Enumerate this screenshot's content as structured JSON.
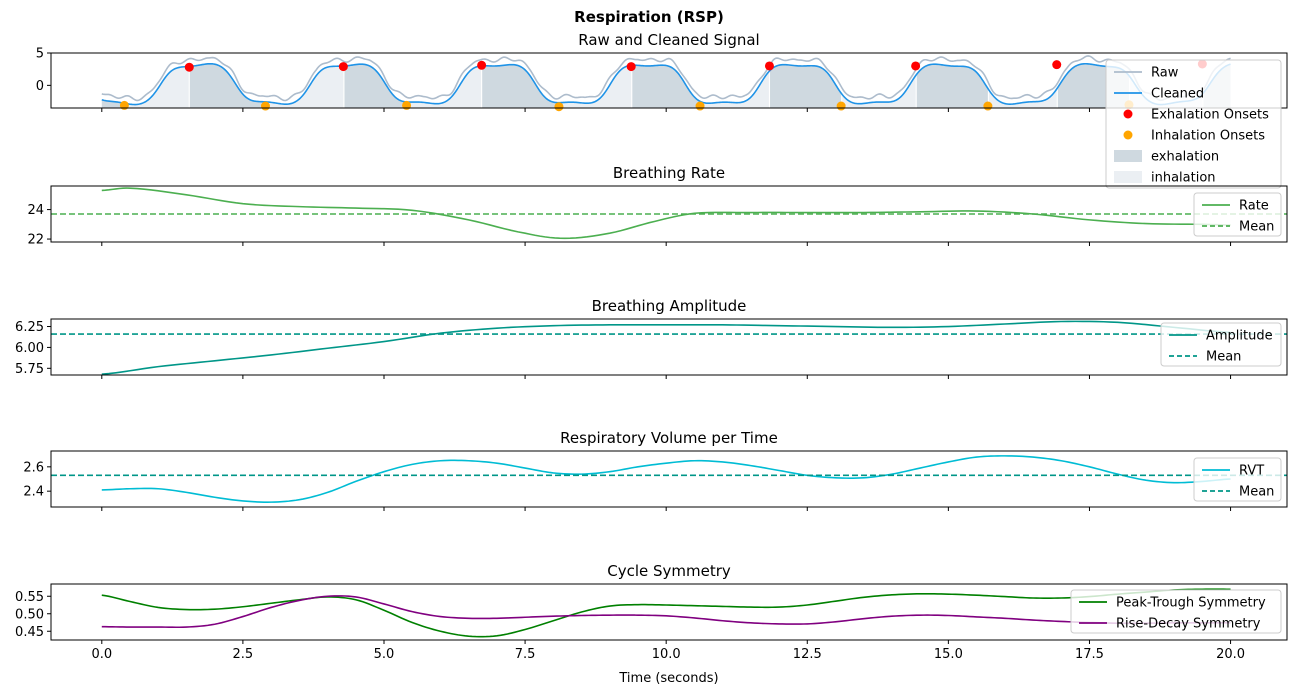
{
  "figure": {
    "suptitle": "Respiration (RSP)",
    "xlabel": "Time (seconds)"
  },
  "chart_data": [
    {
      "type": "line",
      "title": "Raw and Cleaned Signal",
      "xlim": [
        -0.9,
        21
      ],
      "ylim": [
        -3.5,
        5
      ],
      "x_ticks": [
        0,
        2.5,
        5,
        7.5,
        10,
        12.5,
        15,
        17.5,
        20
      ],
      "x_tick_labels": [
        "0.0",
        "2.5",
        "5.0",
        "7.5",
        "10.0",
        "12.5",
        "15.0",
        "17.5",
        "20.0"
      ],
      "y_ticks": [
        0,
        5
      ],
      "y_tick_labels": [
        "0",
        "5"
      ],
      "cycle_period_s": 2.65,
      "exhalation_onsets_x": [
        1.55,
        4.28,
        6.73,
        9.38,
        11.83,
        14.42,
        16.92,
        19.5
      ],
      "exhalation_onsets_y": [
        2.8,
        2.9,
        3.1,
        2.9,
        3.0,
        3.0,
        3.2,
        3.3
      ],
      "inhalation_onsets_x": [
        0.4,
        2.9,
        5.4,
        8.1,
        10.6,
        13.1,
        15.7,
        18.2
      ],
      "inhalation_onsets_y": [
        -3.1,
        -3.2,
        -3.1,
        -3.3,
        -3.2,
        -3.2,
        -3.2,
        -3.0
      ],
      "series": [
        {
          "name": "Raw",
          "color": "#adbccc"
        },
        {
          "name": "Cleaned",
          "color": "#1f93e7"
        },
        {
          "name": "Exhalation Onsets",
          "color": "#ff0000",
          "marker": "circle"
        },
        {
          "name": "Inhalation Onsets",
          "color": "#ffa500",
          "marker": "circle"
        },
        {
          "name": "exhalation",
          "color": "#cfd9e0",
          "kind": "area"
        },
        {
          "name": "inhalation",
          "color": "#ebeff3",
          "kind": "area"
        }
      ],
      "legend": "upper-right"
    },
    {
      "type": "line",
      "title": "Breathing Rate",
      "xlim": [
        -0.9,
        21
      ],
      "ylim": [
        21.8,
        25.6
      ],
      "y_ticks": [
        22,
        24
      ],
      "y_tick_labels": [
        "22",
        "24"
      ],
      "x": [
        0,
        0.5,
        1.5,
        2.5,
        3.5,
        4.5,
        5.5,
        6.5,
        7.5,
        8.2,
        9,
        9.8,
        10.5,
        11.5,
        12.5,
        13.5,
        14.5,
        15.5,
        16.5,
        17.5,
        18.5,
        19.5,
        20
      ],
      "series": [
        {
          "name": "Rate",
          "color": "#4caf50",
          "values": [
            25.3,
            25.45,
            25.0,
            24.4,
            24.2,
            24.1,
            23.95,
            23.3,
            22.4,
            22.05,
            22.4,
            23.2,
            23.75,
            23.8,
            23.8,
            23.8,
            23.85,
            23.9,
            23.7,
            23.3,
            23.05,
            23.0,
            22.95
          ]
        },
        {
          "name": "Mean",
          "color": "#4caf50",
          "dashed": true,
          "value": 23.7
        }
      ],
      "legend": "right"
    },
    {
      "type": "line",
      "title": "Breathing Amplitude",
      "xlim": [
        -0.9,
        21
      ],
      "ylim": [
        5.67,
        6.34
      ],
      "y_ticks": [
        5.75,
        6.0,
        6.25
      ],
      "y_tick_labels": [
        "5.75",
        "6.00",
        "6.25"
      ],
      "x": [
        0,
        1,
        2,
        3,
        4,
        5,
        6,
        7,
        8,
        9,
        10,
        11,
        12,
        13,
        14,
        15,
        16,
        17,
        18,
        19,
        20
      ],
      "series": [
        {
          "name": "Amplitude",
          "color": "#009688",
          "values": [
            5.68,
            5.77,
            5.84,
            5.91,
            5.99,
            6.07,
            6.17,
            6.23,
            6.26,
            6.27,
            6.27,
            6.27,
            6.26,
            6.25,
            6.24,
            6.25,
            6.28,
            6.31,
            6.3,
            6.24,
            6.18
          ]
        },
        {
          "name": "Mean",
          "color": "#009688",
          "dashed": true,
          "value": 6.16
        }
      ],
      "legend": "right"
    },
    {
      "type": "line",
      "title": "Respiratory Volume per Time",
      "xlim": [
        -0.9,
        21
      ],
      "ylim": [
        2.27,
        2.73
      ],
      "y_ticks": [
        2.4,
        2.6
      ],
      "y_tick_labels": [
        "2.4",
        "2.6"
      ],
      "x": [
        0,
        0.5,
        1,
        1.5,
        2,
        2.5,
        3,
        3.5,
        4,
        4.5,
        5,
        5.5,
        6,
        6.5,
        7,
        7.5,
        8,
        8.5,
        9,
        9.5,
        10,
        10.5,
        11,
        11.5,
        12,
        12.5,
        13,
        13.5,
        14,
        14.5,
        15,
        15.5,
        16,
        16.5,
        17,
        17.5,
        18,
        18.5,
        19,
        19.5,
        20
      ],
      "series": [
        {
          "name": "RVT",
          "color": "#00bcd4",
          "values": [
            2.41,
            2.42,
            2.42,
            2.39,
            2.35,
            2.32,
            2.31,
            2.33,
            2.39,
            2.48,
            2.56,
            2.62,
            2.65,
            2.65,
            2.63,
            2.59,
            2.55,
            2.54,
            2.56,
            2.6,
            2.63,
            2.65,
            2.64,
            2.61,
            2.57,
            2.53,
            2.51,
            2.51,
            2.54,
            2.59,
            2.64,
            2.68,
            2.69,
            2.68,
            2.65,
            2.6,
            2.54,
            2.49,
            2.47,
            2.48,
            2.5
          ]
        },
        {
          "name": "Mean",
          "color": "#009688",
          "dashed": true,
          "value": 2.53
        }
      ],
      "legend": "right"
    },
    {
      "type": "line",
      "title": "Cycle Symmetry",
      "xlim": [
        -0.9,
        21
      ],
      "ylim": [
        0.425,
        0.585
      ],
      "y_ticks": [
        0.45,
        0.5,
        0.55
      ],
      "y_tick_labels": [
        "0.45",
        "0.50",
        "0.55"
      ],
      "x": [
        0,
        0.5,
        1,
        1.5,
        2,
        2.5,
        3,
        3.5,
        4,
        4.5,
        5,
        5.5,
        6,
        6.5,
        7,
        7.5,
        8,
        8.5,
        9,
        9.5,
        10,
        10.5,
        11,
        11.5,
        12,
        12.5,
        13,
        13.5,
        14,
        14.5,
        15,
        15.5,
        16,
        16.5,
        17,
        17.5,
        18,
        18.5,
        19,
        19.5,
        20
      ],
      "series": [
        {
          "name": "Peak-Trough Symmetry",
          "color": "#008000",
          "values": [
            0.553,
            0.535,
            0.518,
            0.512,
            0.513,
            0.52,
            0.53,
            0.54,
            0.548,
            0.54,
            0.51,
            0.475,
            0.45,
            0.436,
            0.437,
            0.455,
            0.48,
            0.505,
            0.522,
            0.526,
            0.525,
            0.523,
            0.521,
            0.519,
            0.519,
            0.525,
            0.536,
            0.547,
            0.554,
            0.557,
            0.556,
            0.553,
            0.549,
            0.545,
            0.545,
            0.549,
            0.556,
            0.562,
            0.568,
            0.57,
            0.57
          ]
        },
        {
          "name": "Rise-Decay Symmetry",
          "color": "#800080",
          "values": [
            0.463,
            0.462,
            0.462,
            0.462,
            0.47,
            0.492,
            0.518,
            0.538,
            0.55,
            0.548,
            0.528,
            0.506,
            0.492,
            0.487,
            0.487,
            0.49,
            0.493,
            0.495,
            0.496,
            0.496,
            0.494,
            0.488,
            0.48,
            0.474,
            0.471,
            0.471,
            0.477,
            0.486,
            0.493,
            0.496,
            0.495,
            0.491,
            0.487,
            0.482,
            0.478,
            0.475,
            0.473,
            0.473,
            0.474,
            0.474,
            0.474
          ]
        }
      ],
      "legend": "lower-right"
    }
  ]
}
